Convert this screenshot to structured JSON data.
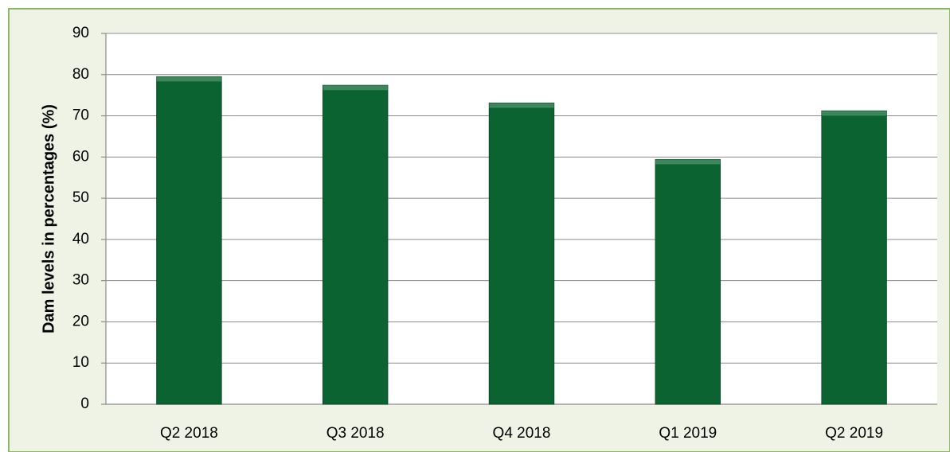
{
  "chart_data": {
    "type": "bar",
    "y_label": "Dam levels in percentages (%)",
    "categories": [
      "Q2 2018",
      "Q3 2018",
      "Q4 2018",
      "Q1 2019",
      "Q2 2019"
    ],
    "values": [
      79.5,
      77.4,
      73.1,
      59.4,
      71.2
    ],
    "color": "#0b6331",
    "ylim": [
      0,
      90
    ],
    "yticks": [
      0,
      10,
      20,
      30,
      40,
      50,
      60,
      70,
      80,
      90
    ],
    "grid": true
  }
}
